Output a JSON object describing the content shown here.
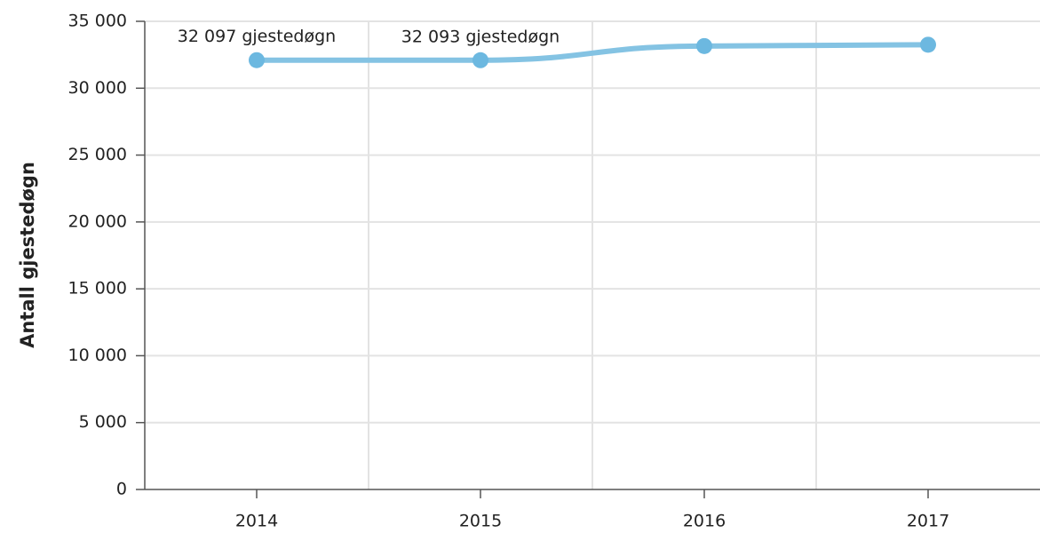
{
  "chart_data": {
    "type": "line",
    "y_label": "Antall gjestedøgn",
    "categories": [
      "2014",
      "2015",
      "2016",
      "2017"
    ],
    "series": [
      {
        "name": "Gjestedøgn",
        "color": "#84c3e3",
        "marker_color": "#6cb8e0",
        "values": [
          32097,
          32093,
          33150,
          33250
        ],
        "value_labels": [
          "32 097 gjestedøgn",
          "32 093 gjestedøgn",
          null,
          null
        ]
      }
    ],
    "ylim": [
      0,
      35000
    ],
    "yticks": [
      0,
      {
        "value": 5000,
        "label": "5 000"
      },
      {
        "value": 10000,
        "label": "10 000"
      },
      {
        "value": 15000,
        "label": "15 000"
      },
      {
        "value": 20000,
        "label": "20 000"
      },
      {
        "value": 25000,
        "label": "25 000"
      },
      {
        "value": 30000,
        "label": "30 000"
      },
      {
        "value": 35000,
        "label": "35 000"
      }
    ],
    "grid": true
  }
}
